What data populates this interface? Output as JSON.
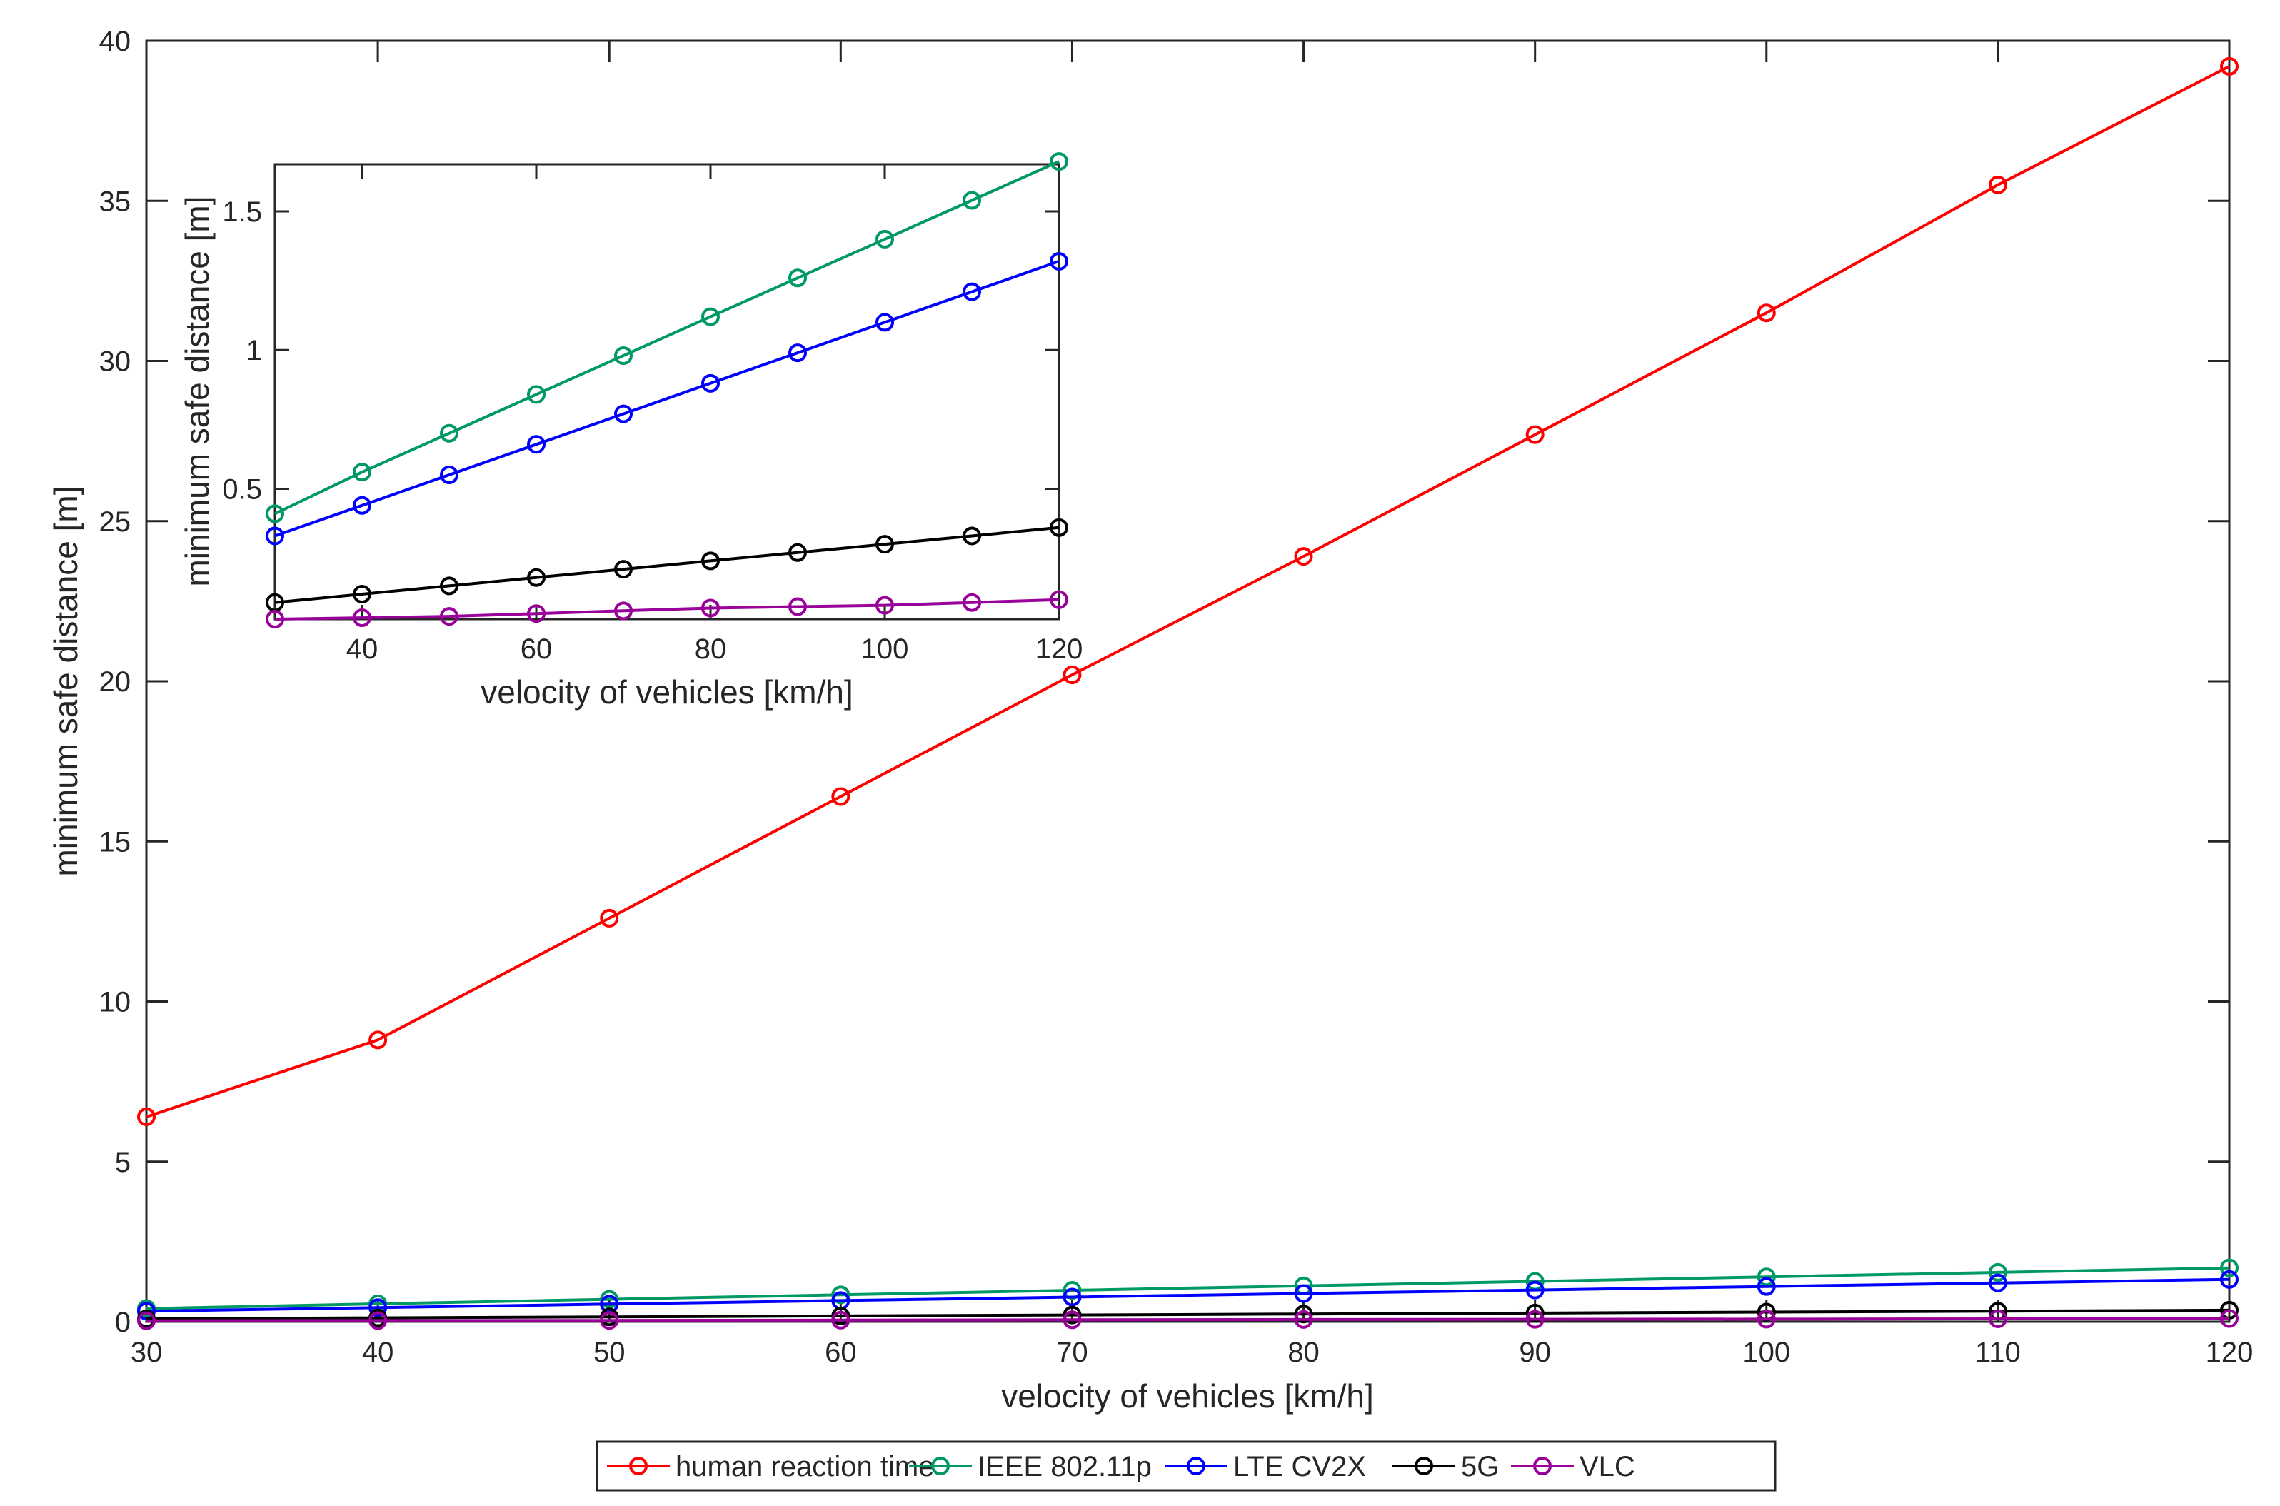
{
  "chart_data": [
    {
      "id": "main",
      "type": "line",
      "xlabel": "velocity of vehicles [km/h]",
      "ylabel": "minimum safe distance [m]",
      "xlim": [
        30,
        120
      ],
      "ylim": [
        0,
        40
      ],
      "xticks": [
        "30",
        "40",
        "50",
        "60",
        "70",
        "80",
        "90",
        "100",
        "110",
        "120"
      ],
      "yticks": [
        "0",
        "5",
        "10",
        "15",
        "20",
        "25",
        "30",
        "35",
        "40"
      ],
      "grid": false,
      "legend_position": "bottom-center, outside",
      "x": [
        30,
        40,
        50,
        60,
        70,
        80,
        90,
        100,
        110,
        120
      ],
      "series": [
        {
          "name": "human reaction time",
          "color": "#ff0000",
          "marker": "circle",
          "values": [
            6.4,
            8.8,
            12.6,
            16.4,
            20.2,
            23.9,
            27.7,
            31.5,
            35.5,
            39.2
          ]
        },
        {
          "name": "IEEE 802.11p",
          "color": "#009966",
          "marker": "circle",
          "values": [
            0.41,
            0.56,
            0.7,
            0.84,
            0.98,
            1.12,
            1.26,
            1.4,
            1.54,
            1.68
          ]
        },
        {
          "name": "LTE CV2X",
          "color": "#0000ff",
          "marker": "circle",
          "values": [
            0.33,
            0.44,
            0.55,
            0.66,
            0.77,
            0.88,
            0.99,
            1.1,
            1.21,
            1.32
          ]
        },
        {
          "name": "5G",
          "color": "#000000",
          "marker": "circle",
          "values": [
            0.09,
            0.12,
            0.15,
            0.18,
            0.21,
            0.24,
            0.27,
            0.3,
            0.33,
            0.36
          ]
        },
        {
          "name": "VLC",
          "color": "#990099",
          "marker": "circle",
          "values": [
            0.03,
            0.035,
            0.04,
            0.05,
            0.06,
            0.07,
            0.075,
            0.08,
            0.09,
            0.1
          ]
        }
      ]
    },
    {
      "id": "inset",
      "type": "line",
      "xlabel": "velocity of vehicles [km/h]",
      "ylabel": "minimum safe distance [m]",
      "xlim": [
        30,
        120
      ],
      "ylim": [
        0.03,
        1.67
      ],
      "xticks": [
        "40",
        "60",
        "80",
        "100",
        "120"
      ],
      "yticks": [
        "0.5",
        "1",
        "1.5"
      ],
      "grid": false,
      "x": [
        30,
        40,
        50,
        60,
        70,
        80,
        90,
        100,
        110,
        120
      ],
      "series": [
        {
          "name": "IEEE 802.11p",
          "color": "#009966",
          "marker": "circle",
          "values": [
            0.41,
            0.56,
            0.7,
            0.84,
            0.98,
            1.12,
            1.26,
            1.4,
            1.54,
            1.68
          ]
        },
        {
          "name": "LTE CV2X",
          "color": "#0000ff",
          "marker": "circle",
          "values": [
            0.33,
            0.44,
            0.55,
            0.66,
            0.77,
            0.88,
            0.99,
            1.1,
            1.21,
            1.32
          ]
        },
        {
          "name": "5G",
          "color": "#000000",
          "marker": "circle",
          "values": [
            0.09,
            0.12,
            0.15,
            0.18,
            0.21,
            0.24,
            0.27,
            0.3,
            0.33,
            0.36
          ]
        },
        {
          "name": "VLC",
          "color": "#990099",
          "marker": "circle",
          "values": [
            0.03,
            0.035,
            0.04,
            0.05,
            0.06,
            0.07,
            0.075,
            0.08,
            0.09,
            0.1
          ]
        }
      ]
    }
  ]
}
